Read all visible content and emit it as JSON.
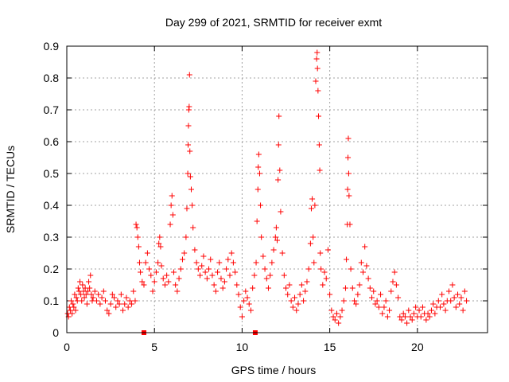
{
  "chart_data": {
    "type": "scatter",
    "title": "Day 299 of 2021, SRMTID for receiver exmt",
    "xlabel": "GPS time / hours",
    "ylabel": "SRMTID / TECUs",
    "xlim": [
      0,
      24
    ],
    "ylim": [
      0,
      0.9
    ],
    "x_ticks": [
      0,
      5,
      10,
      15,
      20
    ],
    "y_ticks": [
      0,
      0.1,
      0.2,
      0.3,
      0.4,
      0.5,
      0.6,
      0.7,
      0.8,
      0.9
    ],
    "x_tick_labels": [
      "0",
      "5",
      "10",
      "15",
      "20"
    ],
    "y_tick_labels": [
      "0",
      "0.1",
      "0.2",
      "0.3",
      "0.4",
      "0.5",
      "0.6",
      "0.7",
      "0.8",
      "0.9"
    ],
    "grid": true,
    "marker": "plus",
    "series_color": "#ff0000",
    "baseline_markers": [
      {
        "x": 4.4,
        "y": 0
      },
      {
        "x": 10.75,
        "y": 0
      }
    ],
    "series": [
      {
        "name": "SRMTID",
        "points": [
          [
            0.05,
            0.06
          ],
          [
            0.1,
            0.05
          ],
          [
            0.15,
            0.08
          ],
          [
            0.2,
            0.07
          ],
          [
            0.25,
            0.1
          ],
          [
            0.3,
            0.06
          ],
          [
            0.35,
            0.09
          ],
          [
            0.4,
            0.08
          ],
          [
            0.45,
            0.12
          ],
          [
            0.5,
            0.07
          ],
          [
            0.55,
            0.11
          ],
          [
            0.6,
            0.1
          ],
          [
            0.65,
            0.14
          ],
          [
            0.7,
            0.13
          ],
          [
            0.75,
            0.16
          ],
          [
            0.8,
            0.12
          ],
          [
            0.85,
            0.1
          ],
          [
            0.9,
            0.15
          ],
          [
            0.95,
            0.13
          ],
          [
            1.0,
            0.11
          ],
          [
            1.05,
            0.14
          ],
          [
            1.1,
            0.12
          ],
          [
            1.15,
            0.09
          ],
          [
            1.2,
            0.13
          ],
          [
            1.25,
            0.16
          ],
          [
            1.3,
            0.14
          ],
          [
            1.35,
            0.18
          ],
          [
            1.4,
            0.12
          ],
          [
            1.45,
            0.1
          ],
          [
            1.5,
            0.11
          ],
          [
            1.6,
            0.13
          ],
          [
            1.7,
            0.1
          ],
          [
            1.8,
            0.12
          ],
          [
            1.9,
            0.09
          ],
          [
            2.0,
            0.11
          ],
          [
            2.1,
            0.13
          ],
          [
            2.2,
            0.1
          ],
          [
            2.3,
            0.07
          ],
          [
            2.4,
            0.06
          ],
          [
            2.5,
            0.09
          ],
          [
            2.6,
            0.12
          ],
          [
            2.7,
            0.11
          ],
          [
            2.8,
            0.08
          ],
          [
            2.9,
            0.1
          ],
          [
            3.0,
            0.09
          ],
          [
            3.1,
            0.12
          ],
          [
            3.2,
            0.07
          ],
          [
            3.3,
            0.09
          ],
          [
            3.4,
            0.11
          ],
          [
            3.5,
            0.08
          ],
          [
            3.6,
            0.1
          ],
          [
            3.7,
            0.09
          ],
          [
            3.8,
            0.13
          ],
          [
            3.9,
            0.1
          ],
          [
            3.95,
            0.34
          ],
          [
            4.0,
            0.33
          ],
          [
            4.05,
            0.3
          ],
          [
            4.1,
            0.27
          ],
          [
            4.15,
            0.22
          ],
          [
            4.2,
            0.19
          ],
          [
            4.3,
            0.16
          ],
          [
            4.4,
            0.15
          ],
          [
            4.5,
            0.22
          ],
          [
            4.6,
            0.25
          ],
          [
            4.7,
            0.2
          ],
          [
            4.8,
            0.18
          ],
          [
            4.9,
            0.13
          ],
          [
            5.0,
            0.16
          ],
          [
            5.1,
            0.19
          ],
          [
            5.2,
            0.22
          ],
          [
            5.25,
            0.28
          ],
          [
            5.3,
            0.3
          ],
          [
            5.35,
            0.27
          ],
          [
            5.4,
            0.21
          ],
          [
            5.5,
            0.17
          ],
          [
            5.6,
            0.15
          ],
          [
            5.7,
            0.18
          ],
          [
            5.8,
            0.16
          ],
          [
            5.9,
            0.34
          ],
          [
            5.95,
            0.4
          ],
          [
            6.0,
            0.43
          ],
          [
            6.05,
            0.37
          ],
          [
            6.1,
            0.19
          ],
          [
            6.2,
            0.15
          ],
          [
            6.3,
            0.13
          ],
          [
            6.4,
            0.17
          ],
          [
            6.5,
            0.2
          ],
          [
            6.6,
            0.23
          ],
          [
            6.7,
            0.25
          ],
          [
            6.8,
            0.3
          ],
          [
            6.85,
            0.39
          ],
          [
            6.9,
            0.5
          ],
          [
            6.92,
            0.59
          ],
          [
            6.94,
            0.65
          ],
          [
            6.96,
            0.7
          ],
          [
            6.98,
            0.71
          ],
          [
            7.0,
            0.81
          ],
          [
            7.02,
            0.57
          ],
          [
            7.05,
            0.49
          ],
          [
            7.1,
            0.45
          ],
          [
            7.15,
            0.4
          ],
          [
            7.2,
            0.33
          ],
          [
            7.3,
            0.26
          ],
          [
            7.4,
            0.22
          ],
          [
            7.5,
            0.2
          ],
          [
            7.6,
            0.18
          ],
          [
            7.7,
            0.21
          ],
          [
            7.8,
            0.24
          ],
          [
            7.9,
            0.19
          ],
          [
            8.0,
            0.17
          ],
          [
            8.1,
            0.2
          ],
          [
            8.2,
            0.23
          ],
          [
            8.3,
            0.18
          ],
          [
            8.4,
            0.15
          ],
          [
            8.5,
            0.13
          ],
          [
            8.6,
            0.19
          ],
          [
            8.7,
            0.22
          ],
          [
            8.8,
            0.17
          ],
          [
            8.9,
            0.14
          ],
          [
            9.0,
            0.16
          ],
          [
            9.1,
            0.2
          ],
          [
            9.2,
            0.23
          ],
          [
            9.3,
            0.18
          ],
          [
            9.4,
            0.25
          ],
          [
            9.5,
            0.22
          ],
          [
            9.6,
            0.19
          ],
          [
            9.7,
            0.15
          ],
          [
            9.8,
            0.12
          ],
          [
            9.9,
            0.08
          ],
          [
            10.0,
            0.05
          ],
          [
            10.1,
            0.1
          ],
          [
            10.2,
            0.13
          ],
          [
            10.3,
            0.11
          ],
          [
            10.4,
            0.09
          ],
          [
            10.5,
            0.07
          ],
          [
            10.6,
            0.14
          ],
          [
            10.7,
            0.18
          ],
          [
            10.8,
            0.22
          ],
          [
            10.85,
            0.35
          ],
          [
            10.9,
            0.45
          ],
          [
            10.92,
            0.52
          ],
          [
            10.95,
            0.56
          ],
          [
            11.0,
            0.5
          ],
          [
            11.05,
            0.4
          ],
          [
            11.1,
            0.3
          ],
          [
            11.2,
            0.24
          ],
          [
            11.3,
            0.2
          ],
          [
            11.4,
            0.17
          ],
          [
            11.5,
            0.14
          ],
          [
            11.6,
            0.18
          ],
          [
            11.7,
            0.22
          ],
          [
            11.8,
            0.26
          ],
          [
            11.9,
            0.3
          ],
          [
            11.95,
            0.33
          ],
          [
            12.0,
            0.29
          ],
          [
            12.05,
            0.48
          ],
          [
            12.08,
            0.59
          ],
          [
            12.1,
            0.68
          ],
          [
            12.15,
            0.51
          ],
          [
            12.2,
            0.38
          ],
          [
            12.3,
            0.25
          ],
          [
            12.4,
            0.18
          ],
          [
            12.5,
            0.14
          ],
          [
            12.6,
            0.12
          ],
          [
            12.7,
            0.15
          ],
          [
            12.8,
            0.1
          ],
          [
            12.9,
            0.08
          ],
          [
            13.0,
            0.11
          ],
          [
            13.1,
            0.07
          ],
          [
            13.2,
            0.09
          ],
          [
            13.3,
            0.12
          ],
          [
            13.4,
            0.15
          ],
          [
            13.5,
            0.1
          ],
          [
            13.6,
            0.13
          ],
          [
            13.7,
            0.16
          ],
          [
            13.8,
            0.2
          ],
          [
            13.9,
            0.28
          ],
          [
            13.95,
            0.39
          ],
          [
            14.0,
            0.42
          ],
          [
            14.05,
            0.3
          ],
          [
            14.1,
            0.22
          ],
          [
            14.15,
            0.4
          ],
          [
            14.2,
            0.79
          ],
          [
            14.25,
            0.86
          ],
          [
            14.28,
            0.88
          ],
          [
            14.3,
            0.83
          ],
          [
            14.33,
            0.76
          ],
          [
            14.36,
            0.68
          ],
          [
            14.4,
            0.59
          ],
          [
            14.43,
            0.51
          ],
          [
            14.46,
            0.25
          ],
          [
            14.5,
            0.2
          ],
          [
            14.6,
            0.15
          ],
          [
            14.7,
            0.19
          ],
          [
            14.8,
            0.17
          ],
          [
            14.9,
            0.26
          ],
          [
            15.0,
            0.12
          ],
          [
            15.1,
            0.07
          ],
          [
            15.2,
            0.05
          ],
          [
            15.3,
            0.04
          ],
          [
            15.4,
            0.06
          ],
          [
            15.5,
            0.03
          ],
          [
            15.6,
            0.05
          ],
          [
            15.7,
            0.07
          ],
          [
            15.8,
            0.1
          ],
          [
            15.9,
            0.14
          ],
          [
            15.95,
            0.23
          ],
          [
            16.0,
            0.34
          ],
          [
            16.02,
            0.45
          ],
          [
            16.04,
            0.55
          ],
          [
            16.06,
            0.61
          ],
          [
            16.08,
            0.5
          ],
          [
            16.1,
            0.43
          ],
          [
            16.15,
            0.34
          ],
          [
            16.2,
            0.2
          ],
          [
            16.3,
            0.14
          ],
          [
            16.4,
            0.1
          ],
          [
            16.5,
            0.09
          ],
          [
            16.6,
            0.12
          ],
          [
            16.7,
            0.15
          ],
          [
            16.8,
            0.22
          ],
          [
            16.9,
            0.19
          ],
          [
            17.0,
            0.27
          ],
          [
            17.1,
            0.21
          ],
          [
            17.2,
            0.17
          ],
          [
            17.3,
            0.14
          ],
          [
            17.4,
            0.11
          ],
          [
            17.5,
            0.13
          ],
          [
            17.6,
            0.09
          ],
          [
            17.7,
            0.1
          ],
          [
            17.8,
            0.08
          ],
          [
            17.9,
            0.12
          ],
          [
            18.0,
            0.06
          ],
          [
            18.1,
            0.08
          ],
          [
            18.2,
            0.1
          ],
          [
            18.3,
            0.05
          ],
          [
            18.4,
            0.07
          ],
          [
            18.5,
            0.13
          ],
          [
            18.6,
            0.16
          ],
          [
            18.7,
            0.19
          ],
          [
            18.8,
            0.15
          ],
          [
            18.9,
            0.11
          ],
          [
            19.0,
            0.05
          ],
          [
            19.1,
            0.04
          ],
          [
            19.2,
            0.06
          ],
          [
            19.3,
            0.05
          ],
          [
            19.4,
            0.03
          ],
          [
            19.5,
            0.07
          ],
          [
            19.6,
            0.05
          ],
          [
            19.7,
            0.04
          ],
          [
            19.8,
            0.06
          ],
          [
            19.9,
            0.08
          ],
          [
            20.0,
            0.05
          ],
          [
            20.1,
            0.07
          ],
          [
            20.2,
            0.05
          ],
          [
            20.3,
            0.08
          ],
          [
            20.4,
            0.06
          ],
          [
            20.5,
            0.04
          ],
          [
            20.6,
            0.06
          ],
          [
            20.7,
            0.05
          ],
          [
            20.8,
            0.07
          ],
          [
            20.9,
            0.09
          ],
          [
            21.0,
            0.06
          ],
          [
            21.1,
            0.08
          ],
          [
            21.2,
            0.1
          ],
          [
            21.3,
            0.08
          ],
          [
            21.4,
            0.12
          ],
          [
            21.5,
            0.09
          ],
          [
            21.6,
            0.07
          ],
          [
            21.7,
            0.1
          ],
          [
            21.8,
            0.13
          ],
          [
            21.9,
            0.1
          ],
          [
            22.0,
            0.15
          ],
          [
            22.1,
            0.11
          ],
          [
            22.2,
            0.08
          ],
          [
            22.3,
            0.12
          ],
          [
            22.4,
            0.09
          ],
          [
            22.5,
            0.11
          ],
          [
            22.6,
            0.07
          ],
          [
            22.7,
            0.13
          ],
          [
            22.8,
            0.1
          ]
        ]
      }
    ]
  }
}
